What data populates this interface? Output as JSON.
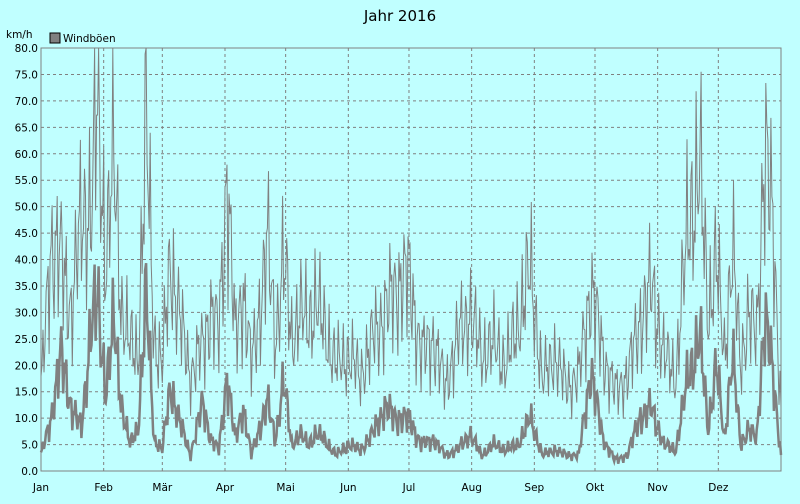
{
  "chart_data": {
    "type": "line",
    "title": "Jahr 2016",
    "ylabel": "km/h",
    "ylim": [
      0,
      80
    ],
    "yticks": [
      "0.0",
      "5.0",
      "10.0",
      "15.0",
      "20.0",
      "25.0",
      "30.0",
      "35.0",
      "40.0",
      "45.0",
      "50.0",
      "55.0",
      "60.0",
      "65.0",
      "70.0",
      "75.0",
      "80.0"
    ],
    "months": [
      "Jan",
      "Feb",
      "Mär",
      "Apr",
      "Mai",
      "Jun",
      "Jul",
      "Aug",
      "Sep",
      "Okt",
      "Nov",
      "Dez"
    ],
    "grid": true,
    "legend_position": "top-left",
    "line_color": "#808080",
    "series": [
      {
        "name": "Windböen",
        "role": "peak",
        "x": [
          0,
          5,
          10,
          15,
          20,
          25,
          28,
          32,
          36,
          40,
          44,
          48,
          52,
          56,
          60,
          64,
          68,
          74,
          80,
          84,
          88,
          92,
          96,
          100,
          104,
          108,
          112,
          116,
          120,
          124,
          128,
          132,
          136,
          140,
          146,
          152,
          158,
          164,
          170,
          176,
          182,
          188,
          194,
          200,
          206,
          212,
          218,
          224,
          230,
          236,
          242,
          248,
          254,
          260,
          266,
          272,
          278,
          284,
          290,
          296,
          302,
          308,
          314,
          320,
          326,
          330,
          334,
          338,
          342,
          346,
          350,
          354,
          358,
          362,
          366
        ],
        "values": [
          15,
          43,
          40,
          30,
          48,
          50,
          70,
          40,
          59,
          30,
          24,
          22,
          66,
          25,
          20,
          40,
          30,
          18,
          24,
          30,
          26,
          56,
          25,
          34,
          20,
          30,
          43,
          25,
          40,
          25,
          30,
          28,
          32,
          27,
          20,
          22,
          18,
          25,
          30,
          35,
          37,
          22,
          25,
          16,
          25,
          30,
          22,
          24,
          20,
          28,
          38,
          17,
          22,
          16,
          18,
          35,
          22,
          15,
          18,
          28,
          35,
          22,
          18,
          47,
          57,
          30,
          40,
          22,
          42,
          20,
          30,
          25,
          63,
          45,
          12
        ]
      },
      {
        "name": "",
        "role": "mean",
        "x": [
          0,
          5,
          10,
          15,
          20,
          25,
          28,
          32,
          36,
          40,
          44,
          48,
          52,
          56,
          60,
          64,
          68,
          74,
          80,
          84,
          88,
          92,
          96,
          100,
          104,
          108,
          112,
          116,
          120,
          124,
          128,
          132,
          136,
          140,
          146,
          152,
          158,
          164,
          170,
          176,
          182,
          188,
          194,
          200,
          206,
          212,
          218,
          224,
          230,
          236,
          242,
          248,
          254,
          260,
          266,
          272,
          278,
          284,
          290,
          296,
          302,
          308,
          314,
          320,
          326,
          330,
          334,
          338,
          342,
          346,
          350,
          354,
          358,
          362,
          366
        ],
        "values": [
          3,
          10,
          22,
          12,
          8,
          28,
          32,
          15,
          28,
          12,
          5,
          8,
          33,
          6,
          4,
          16,
          10,
          3,
          13,
          6,
          4,
          18,
          6,
          12,
          3,
          8,
          13,
          6,
          17,
          5,
          7,
          5,
          7,
          6,
          3,
          5,
          4,
          7,
          12,
          10,
          10,
          5,
          6,
          3,
          4,
          7,
          3,
          5,
          4,
          5,
          10,
          3,
          4,
          3,
          3,
          19,
          6,
          2,
          3,
          10,
          12,
          5,
          4,
          18,
          25,
          8,
          20,
          6,
          22,
          5,
          8,
          6,
          30,
          18,
          3
        ]
      }
    ]
  }
}
